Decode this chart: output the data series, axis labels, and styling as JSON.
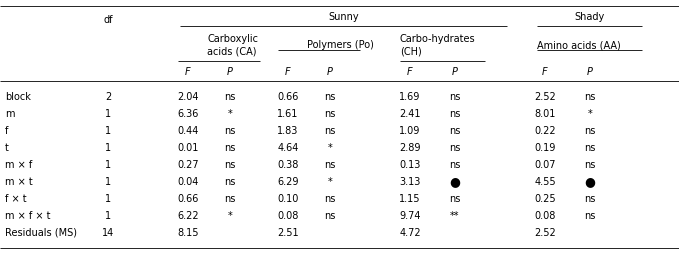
{
  "col_headers": {
    "sunny_label": "Sunny",
    "shady_label": "Shady",
    "ca_label": "Carboxylic\nacids (CA)",
    "po_label": "Polymers (Po)",
    "ch_label": "Carbo-hydrates\n(CH)",
    "aa_label": "Amino acids (AA)"
  },
  "rows": [
    [
      "block",
      "2",
      "2.04",
      "ns",
      "0.66",
      "ns",
      "1.69",
      "ns",
      "2.52",
      "ns"
    ],
    [
      "m",
      "1",
      "6.36",
      "*",
      "1.61",
      "ns",
      "2.41",
      "ns",
      "8.01",
      "*"
    ],
    [
      "f",
      "1",
      "0.44",
      "ns",
      "1.83",
      "ns",
      "1.09",
      "ns",
      "0.22",
      "ns"
    ],
    [
      "t",
      "1",
      "0.01",
      "ns",
      "4.64",
      "*",
      "2.89",
      "ns",
      "0.19",
      "ns"
    ],
    [
      "m × f",
      "1",
      "0.27",
      "ns",
      "0.38",
      "ns",
      "0.13",
      "ns",
      "0.07",
      "ns"
    ],
    [
      "m × t",
      "1",
      "0.04",
      "ns",
      "6.29",
      "*",
      "3.13",
      "●",
      "4.55",
      "●"
    ],
    [
      "f × t",
      "1",
      "0.66",
      "ns",
      "0.10",
      "ns",
      "1.15",
      "ns",
      "0.25",
      "ns"
    ],
    [
      "m × f × t",
      "1",
      "6.22",
      "*",
      "0.08",
      "ns",
      "9.74",
      "**",
      "0.08",
      "ns"
    ],
    [
      "Residuals (MS)",
      "14",
      "8.15",
      "",
      "2.51",
      "",
      "4.72",
      "",
      "2.52",
      ""
    ]
  ],
  "bg_color": "#ffffff",
  "text_color": "#000000",
  "fs": 7.0
}
